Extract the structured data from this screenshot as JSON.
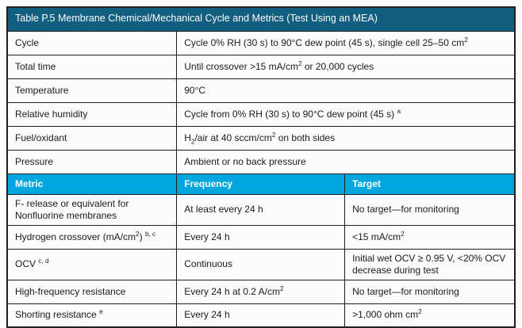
{
  "table": {
    "title": "Table P.5 Membrane Chemical/Mechanical Cycle and Metrics (Test Using an MEA)",
    "spec_rows": [
      {
        "label": "Cycle",
        "value": "Cycle 0% RH (30 s) to 90°C dew point (45 s), single cell 25–50 cm^{2}"
      },
      {
        "label": "Total time",
        "value": "Until crossover >15 mA/cm^{2} or 20,000 cycles"
      },
      {
        "label": "Temperature",
        "value": "90°C"
      },
      {
        "label": "Relative humidity",
        "value": "Cycle from 0% RH (30 s) to 90°C dew point (45 s) ^{a}"
      },
      {
        "label": "Fuel/oxidant",
        "value": "H_{2}/air at 40 sccm/cm^{2} on both sides"
      },
      {
        "label": "Pressure",
        "value": "Ambient or no back pressure"
      }
    ],
    "metric_header": {
      "metric": "Metric",
      "frequency": "Frequency",
      "target": "Target"
    },
    "metric_rows": [
      {
        "metric": "F- release or equivalent for Nonfluorine membranes",
        "frequency": "At least every 24 h",
        "target": "No target—for monitoring"
      },
      {
        "metric": "Hydrogen crossover (mA/cm^{2}) ^{b, c}",
        "frequency": "Every 24 h",
        "target": "<15 mA/cm^{2}"
      },
      {
        "metric": "OCV ^{c, d}",
        "frequency": "Continuous",
        "target": "Initial wet OCV ≥ 0.95 V, <20% OCV decrease during test"
      },
      {
        "metric": "High-frequency resistance",
        "frequency": "Every 24 h at 0.2 A/cm^{2}",
        "target": "No target—for monitoring"
      },
      {
        "metric": "Shorting resistance ^{e}",
        "frequency": "Every 24 h",
        "target": ">1,000 ohm cm^{2}"
      }
    ],
    "colors": {
      "title_bg": "#115E80",
      "header_bg": "#00A7DE",
      "border": "#1f1f1f",
      "text": "#1a1a1a",
      "header_text": "#ffffff",
      "page_bg": "#fcfcfc"
    }
  }
}
